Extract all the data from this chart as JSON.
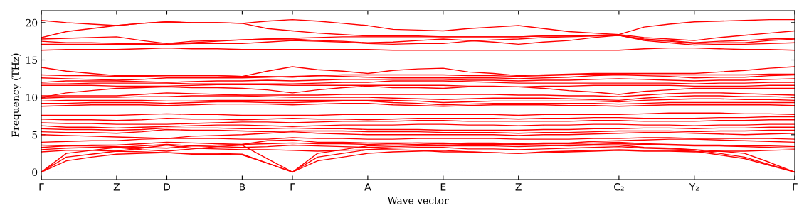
{
  "chart_data": {
    "type": "line",
    "xlabel": "Wave vector",
    "ylabel": "Frequency (THz)",
    "categories": [
      "Γ",
      null,
      null,
      "Z",
      null,
      "D",
      null,
      null,
      "B",
      null,
      "Γ",
      null,
      null,
      "A",
      null,
      null,
      "E",
      null,
      null,
      "Z",
      null,
      null,
      null,
      "C₂",
      null,
      null,
      "Y₂",
      null,
      null,
      null,
      "Γ"
    ],
    "ylim": [
      -1,
      21.6
    ],
    "yticks": [
      0,
      5,
      10,
      15,
      20
    ],
    "grid": false,
    "legend": false,
    "marker": "none",
    "line_style": "solid",
    "ref_lines": [
      {
        "axis": "y",
        "value": 0,
        "color": "#0000ff",
        "line_style": "dotted"
      }
    ],
    "series": [
      {
        "color": "#ff0000",
        "values": [
          0,
          1.5,
          2.0,
          2.4,
          2.5,
          2.6,
          2.4,
          2.4,
          2.3,
          1.2,
          0,
          1.5,
          2.0,
          2.5,
          2.7,
          2.8,
          2.9,
          2.7,
          2.6,
          2.5,
          2.7,
          2.8,
          2.9,
          3.0,
          2.9,
          2.9,
          2.8,
          2.3,
          1.8,
          0.9,
          0
        ]
      },
      {
        "color": "#ff0000",
        "values": [
          0,
          2.0,
          2.4,
          2.8,
          2.7,
          2.6,
          2.5,
          2.5,
          2.4,
          1.2,
          0,
          2.0,
          2.5,
          3.0,
          3.2,
          3.3,
          3.3,
          3.1,
          3.1,
          3.0,
          3.1,
          3.2,
          3.3,
          3.4,
          3.2,
          3.1,
          3.0,
          2.5,
          2.0,
          1.0,
          0
        ]
      },
      {
        "color": "#ff0000",
        "values": [
          0,
          2.5,
          2.9,
          3.3,
          3.0,
          2.8,
          3.1,
          3.4,
          3.6,
          1.8,
          0,
          2.5,
          3.0,
          3.5,
          3.6,
          3.7,
          3.8,
          3.7,
          3.7,
          3.6,
          3.6,
          3.5,
          3.6,
          3.6,
          3.3,
          3.2,
          3.0,
          2.8,
          2.5,
          1.3,
          0
        ]
      },
      {
        "color": "#ff0000",
        "values": [
          2.7,
          2.9,
          2.9,
          2.8,
          3.2,
          3.6,
          3.2,
          3.1,
          3.0,
          3.0,
          2.9,
          2.8,
          2.9,
          3.0,
          3.0,
          2.9,
          2.7,
          2.7,
          2.6,
          2.5,
          2.6,
          2.7,
          2.8,
          2.9,
          2.8,
          2.8,
          2.7,
          2.8,
          2.8,
          2.9,
          3.0
        ]
      },
      {
        "color": "#ff0000",
        "values": [
          3.0,
          3.2,
          3.3,
          3.3,
          3.5,
          3.7,
          3.5,
          3.4,
          3.3,
          3.4,
          3.6,
          3.5,
          3.4,
          3.3,
          3.4,
          3.5,
          3.5,
          3.5,
          3.5,
          3.4,
          3.5,
          3.6,
          3.7,
          3.8,
          3.7,
          3.6,
          3.5,
          3.5,
          3.4,
          3.3,
          3.2
        ]
      },
      {
        "color": "#ff0000",
        "values": [
          3.3,
          3.5,
          3.6,
          3.6,
          3.8,
          4.0,
          3.9,
          3.8,
          3.7,
          3.8,
          3.9,
          3.8,
          3.8,
          3.7,
          3.8,
          3.9,
          3.9,
          3.8,
          3.8,
          3.7,
          3.8,
          3.8,
          3.9,
          4.0,
          3.8,
          3.7,
          3.6,
          3.6,
          3.5,
          3.5,
          3.4
        ]
      },
      {
        "color": "#ff0000",
        "values": [
          3.6,
          3.5,
          3.5,
          3.4,
          3.3,
          3.2,
          3.5,
          3.6,
          3.7,
          4.2,
          4.3,
          4.0,
          4.0,
          3.9,
          3.9,
          3.9,
          3.8,
          3.9,
          3.9,
          3.8,
          3.9,
          3.9,
          4.1,
          4.2,
          4.3,
          4.4,
          4.4,
          4.3,
          4.2,
          4.1,
          4.0
        ]
      },
      {
        "color": "#ff0000",
        "values": [
          4.0,
          4.1,
          4.2,
          4.2,
          4.4,
          4.5,
          4.5,
          4.5,
          4.4,
          4.4,
          4.6,
          4.5,
          4.5,
          4.4,
          4.4,
          4.5,
          4.5,
          4.5,
          4.5,
          4.4,
          4.4,
          4.4,
          4.5,
          4.5,
          4.6,
          4.6,
          4.5,
          4.5,
          4.5,
          4.5,
          4.4
        ]
      },
      {
        "color": "#ff0000",
        "values": [
          5.0,
          4.9,
          4.8,
          4.7,
          4.6,
          4.5,
          4.8,
          4.9,
          5.0,
          5.2,
          5.4,
          5.2,
          5.1,
          5.0,
          5.0,
          5.0,
          5.0,
          5.0,
          5.0,
          4.9,
          5.0,
          5.0,
          5.1,
          5.2,
          5.3,
          5.3,
          5.2,
          5.1,
          5.0,
          5.1,
          5.2
        ]
      },
      {
        "color": "#ff0000",
        "values": [
          5.4,
          5.3,
          5.3,
          5.2,
          5.4,
          5.7,
          5.6,
          5.6,
          5.5,
          5.4,
          5.5,
          5.5,
          5.5,
          5.4,
          5.4,
          5.4,
          5.3,
          5.3,
          5.3,
          5.2,
          5.3,
          5.3,
          5.4,
          5.5,
          5.5,
          5.5,
          5.4,
          5.5,
          5.5,
          5.6,
          5.6
        ]
      },
      {
        "color": "#ff0000",
        "values": [
          5.8,
          5.7,
          5.7,
          5.6,
          5.7,
          5.9,
          5.9,
          5.9,
          5.8,
          5.8,
          5.9,
          5.8,
          5.8,
          5.7,
          5.7,
          5.7,
          5.6,
          5.6,
          5.6,
          5.6,
          5.7,
          5.7,
          5.8,
          5.8,
          5.9,
          5.9,
          5.8,
          5.9,
          5.9,
          6.0,
          6.0
        ]
      },
      {
        "color": "#ff0000",
        "values": [
          6.2,
          6.0,
          6.0,
          5.9,
          6.0,
          6.1,
          6.2,
          6.3,
          6.3,
          6.2,
          6.1,
          6.2,
          6.3,
          6.3,
          6.3,
          6.4,
          6.4,
          6.3,
          6.3,
          6.2,
          6.3,
          6.3,
          6.4,
          6.4,
          6.3,
          6.3,
          6.2,
          6.3,
          6.3,
          6.4,
          6.4
        ]
      },
      {
        "color": "#ff0000",
        "values": [
          6.6,
          6.5,
          6.5,
          6.4,
          6.4,
          6.4,
          6.5,
          6.6,
          6.7,
          6.7,
          6.6,
          6.7,
          6.8,
          6.8,
          6.8,
          6.9,
          6.9,
          6.8,
          6.8,
          6.8,
          6.8,
          6.8,
          6.9,
          6.9,
          6.8,
          6.8,
          6.8,
          6.9,
          6.9,
          7.0,
          7.0
        ]
      },
      {
        "color": "#ff0000",
        "values": [
          7.1,
          7.0,
          7.0,
          6.9,
          7.0,
          7.2,
          7.1,
          7.1,
          7.0,
          7.1,
          7.2,
          7.1,
          7.1,
          7.0,
          7.1,
          7.2,
          7.2,
          7.2,
          7.2,
          7.1,
          7.2,
          7.2,
          7.3,
          7.3,
          7.2,
          7.2,
          7.2,
          7.3,
          7.3,
          7.4,
          7.4
        ]
      },
      {
        "color": "#ff0000",
        "values": [
          7.6,
          7.6,
          7.6,
          7.6,
          7.7,
          7.8,
          7.7,
          7.7,
          7.6,
          7.6,
          7.6,
          7.6,
          7.7,
          7.7,
          7.7,
          7.7,
          7.7,
          7.7,
          7.7,
          7.6,
          7.7,
          7.7,
          7.7,
          7.7,
          7.8,
          7.9,
          7.9,
          7.9,
          7.8,
          7.8,
          7.7
        ]
      },
      {
        "color": "#ff0000",
        "values": [
          8.8,
          8.9,
          9.0,
          9.0,
          9.0,
          8.9,
          9.0,
          9.1,
          9.1,
          9.1,
          9.0,
          9.1,
          9.2,
          9.2,
          9.0,
          8.9,
          8.8,
          8.9,
          9.0,
          9.0,
          9.0,
          8.9,
          8.9,
          8.8,
          8.9,
          9.0,
          9.0,
          9.0,
          9.0,
          9.0,
          8.9
        ]
      },
      {
        "color": "#ff0000",
        "values": [
          9.2,
          9.2,
          9.3,
          9.3,
          9.3,
          9.2,
          9.3,
          9.4,
          9.4,
          9.3,
          9.3,
          9.4,
          9.5,
          9.5,
          9.3,
          9.2,
          9.0,
          9.1,
          9.2,
          9.2,
          9.2,
          9.2,
          9.2,
          9.1,
          9.2,
          9.3,
          9.3,
          9.3,
          9.3,
          9.3,
          9.3
        ]
      },
      {
        "color": "#ff0000",
        "values": [
          9.5,
          9.6,
          9.6,
          9.6,
          9.6,
          9.5,
          9.5,
          9.6,
          9.6,
          9.6,
          9.6,
          9.6,
          9.6,
          9.6,
          9.6,
          9.5,
          9.3,
          9.4,
          9.5,
          9.5,
          9.5,
          9.5,
          9.5,
          9.4,
          9.6,
          9.7,
          9.8,
          9.8,
          9.7,
          9.7,
          9.6
        ]
      },
      {
        "color": "#ff0000",
        "values": [
          9.9,
          10.0,
          10.0,
          10.0,
          10.1,
          10.1,
          10.2,
          10.2,
          10.2,
          10.1,
          10.0,
          10.0,
          10.0,
          10.0,
          9.9,
          9.8,
          9.7,
          9.8,
          9.9,
          9.9,
          9.9,
          9.8,
          9.7,
          9.6,
          9.9,
          10.1,
          10.2,
          10.2,
          10.1,
          10.1,
          10.0
        ]
      },
      {
        "color": "#ff0000",
        "values": [
          10.2,
          10.2,
          10.2,
          10.2,
          10.4,
          10.6,
          10.5,
          10.4,
          10.3,
          10.3,
          10.3,
          10.3,
          10.4,
          10.4,
          10.4,
          10.4,
          10.4,
          10.4,
          10.4,
          10.3,
          10.3,
          10.2,
          10.2,
          10.1,
          10.3,
          10.5,
          10.6,
          10.6,
          10.5,
          10.4,
          10.3
        ]
      },
      {
        "color": "#ff0000",
        "values": [
          10.0,
          10.6,
          10.9,
          11.2,
          11.3,
          11.4,
          11.3,
          11.3,
          11.2,
          11.0,
          10.6,
          11.0,
          11.3,
          11.5,
          11.3,
          11.3,
          11.2,
          11.4,
          11.4,
          11.4,
          11.2,
          10.9,
          10.7,
          10.4,
          10.8,
          11.0,
          11.2,
          11.2,
          11.2,
          11.2,
          11.2
        ]
      },
      {
        "color": "#ff0000",
        "values": [
          11.6,
          11.6,
          11.6,
          11.5,
          11.5,
          11.5,
          11.6,
          11.7,
          11.7,
          11.7,
          11.6,
          11.6,
          11.6,
          11.6,
          11.6,
          11.6,
          11.6,
          11.5,
          11.5,
          11.4,
          11.5,
          11.5,
          11.6,
          11.6,
          11.6,
          11.6,
          11.5,
          11.5,
          11.5,
          11.6,
          11.6
        ]
      },
      {
        "color": "#ff0000",
        "values": [
          11.8,
          11.8,
          11.9,
          11.9,
          11.9,
          11.9,
          11.8,
          11.8,
          11.8,
          11.8,
          11.8,
          11.9,
          12.0,
          12.0,
          12.2,
          12.2,
          12.2,
          12.1,
          12.0,
          11.9,
          11.9,
          11.9,
          11.9,
          11.9,
          11.9,
          11.9,
          11.8,
          11.9,
          11.9,
          12.0,
          12.0
        ]
      },
      {
        "color": "#ff0000",
        "values": [
          12.0,
          12.2,
          12.2,
          12.2,
          12.1,
          12.0,
          12.1,
          12.2,
          12.2,
          12.3,
          12.2,
          12.3,
          12.4,
          12.4,
          12.4,
          12.4,
          12.4,
          12.3,
          12.3,
          12.2,
          12.3,
          12.3,
          12.4,
          12.5,
          12.4,
          12.3,
          12.2,
          12.3,
          12.3,
          12.4,
          12.5
        ]
      },
      {
        "color": "#ff0000",
        "values": [
          12.6,
          12.5,
          12.4,
          12.3,
          12.4,
          12.6,
          12.6,
          12.6,
          12.6,
          12.7,
          12.8,
          12.9,
          12.8,
          12.7,
          12.6,
          12.6,
          12.6,
          12.6,
          12.6,
          12.5,
          12.6,
          12.7,
          12.9,
          13.0,
          12.9,
          12.8,
          12.6,
          12.7,
          12.7,
          12.9,
          13.0
        ]
      },
      {
        "color": "#ff0000",
        "values": [
          13.0,
          12.9,
          12.9,
          12.8,
          12.8,
          12.9,
          12.9,
          12.9,
          12.8,
          12.8,
          12.7,
          12.9,
          13.0,
          13.0,
          13.0,
          13.0,
          13.0,
          12.9,
          12.9,
          12.8,
          12.9,
          13.0,
          13.1,
          13.1,
          13.0,
          13.0,
          13.0,
          13.0,
          13.0,
          13.1,
          13.1
        ]
      },
      {
        "color": "#ff0000",
        "values": [
          14.0,
          13.5,
          13.2,
          12.9,
          12.9,
          12.9,
          12.9,
          12.9,
          12.8,
          13.5,
          14.1,
          13.7,
          13.5,
          13.2,
          13.6,
          13.8,
          13.9,
          13.4,
          13.2,
          12.9,
          13.0,
          13.1,
          13.2,
          13.2,
          13.2,
          13.2,
          13.2,
          13.4,
          13.6,
          13.9,
          14.1
        ]
      },
      {
        "color": "#ff0000",
        "values": [
          16.3,
          16.4,
          16.4,
          16.4,
          16.5,
          16.6,
          16.5,
          16.5,
          16.4,
          16.4,
          16.4,
          16.4,
          16.4,
          16.4,
          16.3,
          16.3,
          16.3,
          16.3,
          16.3,
          16.3,
          16.3,
          16.3,
          16.3,
          16.3,
          16.5,
          16.6,
          16.6,
          16.5,
          16.4,
          16.4,
          16.3
        ]
      },
      {
        "color": "#ff0000",
        "values": [
          17.1,
          17.1,
          17.1,
          17.1,
          17.1,
          17.1,
          17.2,
          17.2,
          17.2,
          17.4,
          17.6,
          17.5,
          17.4,
          17.2,
          17.1,
          17.2,
          17.2,
          17.5,
          17.7,
          17.8,
          18.0,
          18.1,
          18.2,
          18.3,
          17.6,
          17.3,
          17.0,
          17.1,
          17.1,
          17.2,
          17.3
        ]
      },
      {
        "color": "#ff0000",
        "values": [
          17.5,
          17.3,
          17.3,
          17.2,
          17.2,
          17.1,
          17.3,
          17.5,
          17.7,
          17.8,
          17.8,
          17.6,
          17.5,
          17.3,
          17.4,
          17.6,
          17.8,
          17.6,
          17.4,
          17.1,
          17.4,
          17.6,
          18.0,
          18.3,
          17.7,
          17.5,
          17.2,
          17.3,
          17.3,
          17.6,
          17.8
        ]
      },
      {
        "color": "#ff0000",
        "values": [
          17.8,
          17.9,
          18.0,
          18.1,
          17.6,
          17.2,
          17.5,
          17.6,
          17.7,
          17.8,
          17.9,
          18.0,
          18.1,
          18.1,
          18.1,
          18.1,
          18.1,
          18.1,
          18.1,
          18.1,
          18.2,
          18.2,
          18.3,
          18.3,
          17.8,
          17.6,
          17.3,
          17.5,
          17.6,
          17.8,
          17.9
        ]
      },
      {
        "color": "#ff0000",
        "values": [
          18.0,
          18.8,
          19.2,
          19.6,
          19.9,
          20.1,
          20.0,
          20.0,
          19.9,
          19.2,
          18.9,
          18.6,
          18.4,
          18.2,
          18.2,
          18.2,
          18.1,
          18.1,
          18.1,
          18.1,
          18.2,
          18.2,
          18.3,
          18.4,
          18.0,
          17.8,
          17.6,
          18.0,
          18.3,
          18.6,
          18.9
        ]
      },
      {
        "color": "#ff0000",
        "values": [
          20.3,
          20.0,
          19.8,
          19.6,
          19.9,
          20.1,
          20.0,
          20.0,
          19.9,
          20.2,
          20.4,
          20.2,
          19.9,
          19.6,
          19.1,
          19.0,
          18.9,
          19.2,
          19.4,
          19.6,
          19.2,
          18.8,
          18.6,
          18.4,
          19.4,
          19.8,
          20.1,
          20.2,
          20.3,
          20.4,
          20.4
        ]
      }
    ]
  }
}
